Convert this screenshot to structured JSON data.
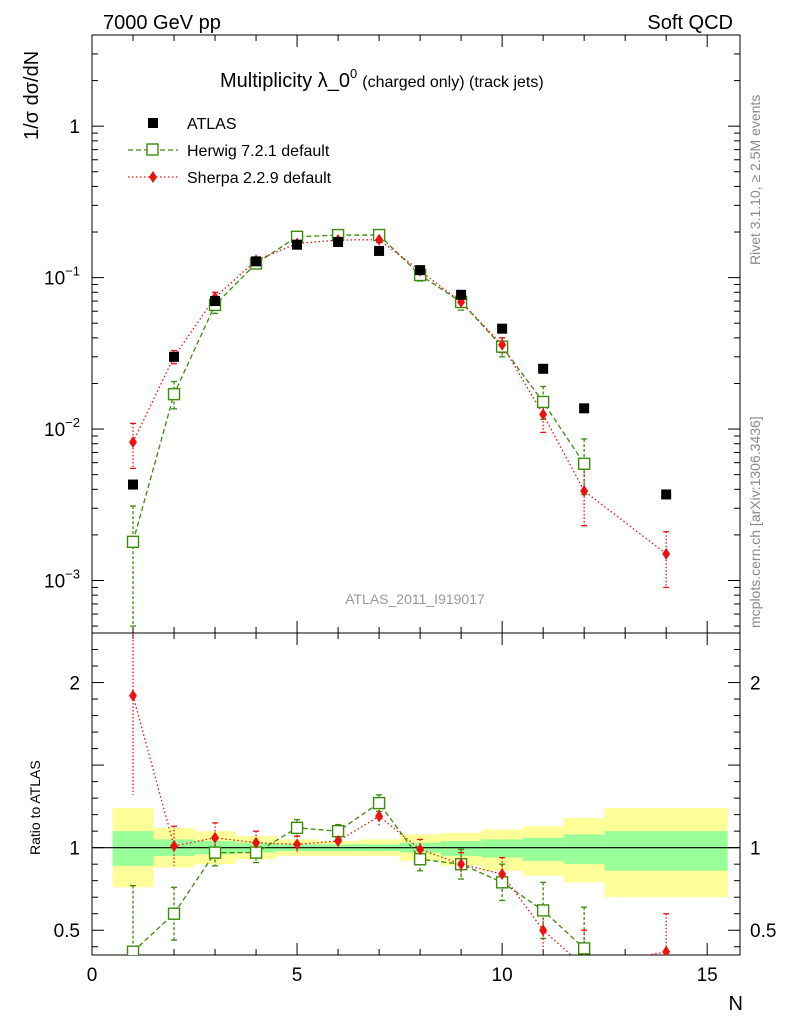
{
  "header": {
    "left": "7000 GeV pp",
    "right": "Soft QCD"
  },
  "side_text": {
    "rivet": "Rivet 3.1.10, ≥ 2.5M events",
    "mcplots": "mcplots.cern.ch [arXiv:1306.3436]"
  },
  "chart_data": {
    "type": "scatter",
    "title": "Multiplicity λ_0^0 (charged only) (track jets)",
    "title_main": "Multiplicity λ_0",
    "title_sup": "0",
    "title_rest": "(charged only) (track jets)",
    "analysis_label": "ATLAS_2011_I919017",
    "xlabel": "N",
    "ylabel": "1/σ dσ/dN",
    "ratio_ylabel": "Ratio to ATLAS",
    "xlim": [
      0,
      15.8
    ],
    "ylim": [
      0.00045,
      4
    ],
    "yscale": "log",
    "ratio_ylim": [
      0.35,
      2.3
    ],
    "x_ticks": [
      0,
      5,
      10,
      15
    ],
    "y_ticks": [
      {
        "value": 0.001,
        "base": "10",
        "exp": "−3"
      },
      {
        "value": 0.01,
        "base": "10",
        "exp": "−2"
      },
      {
        "value": 0.1,
        "base": "10",
        "exp": "−1"
      },
      {
        "value": 1,
        "base": "1",
        "exp": ""
      }
    ],
    "ratio_ticks": [
      {
        "value": 0.5,
        "label": "0.5"
      },
      {
        "value": 1,
        "label": "1"
      },
      {
        "value": 2,
        "label": "2"
      }
    ],
    "legend": [
      "ATLAS",
      "Herwig 7.2.1 default",
      "Sherpa 2.2.9 default"
    ],
    "colors": {
      "atlas": "#000000",
      "herwig": "#3a8c0a",
      "sherpa": "#ee1111",
      "band_yellow": "#ffff99",
      "band_green": "#99ff99"
    },
    "series": [
      {
        "name": "ATLAS",
        "x": [
          1,
          2,
          3,
          4,
          5,
          6,
          7,
          8,
          9,
          10,
          11,
          12,
          14
        ],
        "y": [
          0.0043,
          0.03,
          0.07,
          0.128,
          0.165,
          0.172,
          0.15,
          0.112,
          0.077,
          0.046,
          0.025,
          0.0137,
          0.0037
        ]
      },
      {
        "name": "Herwig 7.2.1 default",
        "x": [
          1,
          2,
          3,
          4,
          5,
          6,
          7,
          8,
          9,
          10,
          11,
          12
        ],
        "y": [
          0.0018,
          0.017,
          0.066,
          0.124,
          0.186,
          0.191,
          0.191,
          0.104,
          0.069,
          0.035,
          0.0151,
          0.0059
        ],
        "err_lo": [
          0.0013,
          0.0034,
          0.008,
          0.008,
          0.008,
          0.007,
          0.008,
          0.009,
          0.008,
          0.005,
          0.0035,
          0.0022
        ],
        "err_hi": [
          0.0013,
          0.0036,
          0.008,
          0.008,
          0.008,
          0.007,
          0.008,
          0.009,
          0.008,
          0.005,
          0.004,
          0.0027
        ],
        "ratio": [
          0.37,
          0.6,
          0.97,
          0.97,
          1.12,
          1.1,
          1.27,
          0.93,
          0.9,
          0.79,
          0.62,
          0.39
        ],
        "ratio_err": [
          0.4,
          0.16,
          0.08,
          0.06,
          0.05,
          0.04,
          0.05,
          0.07,
          0.09,
          0.11,
          0.17,
          0.25
        ]
      },
      {
        "name": "Sherpa 2.2.9 default",
        "x": [
          1,
          2,
          3,
          4,
          5,
          6,
          7,
          8,
          9,
          10,
          11,
          12,
          14
        ],
        "y": [
          0.0082,
          0.03,
          0.074,
          0.13,
          0.168,
          0.177,
          0.178,
          0.111,
          0.069,
          0.036,
          0.0125,
          0.0039,
          0.0015
        ],
        "err_lo": [
          0.0027,
          0.003,
          0.006,
          0.006,
          0.006,
          0.006,
          0.007,
          0.006,
          0.005,
          0.004,
          0.003,
          0.0016,
          0.0006
        ],
        "err_hi": [
          0.0027,
          0.003,
          0.006,
          0.006,
          0.006,
          0.006,
          0.007,
          0.006,
          0.005,
          0.004,
          0.003,
          0.0016,
          0.0006
        ],
        "ratio": [
          1.92,
          1.01,
          1.06,
          1.03,
          1.02,
          1.04,
          1.19,
          0.99,
          0.9,
          0.84,
          0.5,
          0.28,
          0.37
        ],
        "ratio_err": [
          0.6,
          0.12,
          0.09,
          0.07,
          0.05,
          0.04,
          0.06,
          0.06,
          0.07,
          0.1,
          0.14,
          0.22,
          0.23
        ]
      }
    ],
    "uncertainty_bands": {
      "bins": [
        [
          0.5,
          1.5
        ],
        [
          1.5,
          2.5
        ],
        [
          2.5,
          3.5
        ],
        [
          3.5,
          4.5
        ],
        [
          4.5,
          5.5
        ],
        [
          5.5,
          6.5
        ],
        [
          6.5,
          7.5
        ],
        [
          7.5,
          8.5
        ],
        [
          8.5,
          9.5
        ],
        [
          9.5,
          10.5
        ],
        [
          10.5,
          11.5
        ],
        [
          11.5,
          12.5
        ],
        [
          12.5,
          15.5
        ]
      ],
      "yellow": [
        [
          0.76,
          1.24
        ],
        [
          0.88,
          1.12
        ],
        [
          0.9,
          1.1
        ],
        [
          0.93,
          1.07
        ],
        [
          0.95,
          1.05
        ],
        [
          0.95,
          1.04
        ],
        [
          0.95,
          1.05
        ],
        [
          0.92,
          1.08
        ],
        [
          0.89,
          1.09
        ],
        [
          0.86,
          1.11
        ],
        [
          0.83,
          1.13
        ],
        [
          0.79,
          1.18
        ],
        [
          0.7,
          1.24
        ]
      ],
      "green": [
        [
          0.89,
          1.1
        ],
        [
          0.95,
          1.05
        ],
        [
          0.96,
          1.04
        ],
        [
          0.97,
          1.03
        ],
        [
          0.98,
          1.02
        ],
        [
          0.98,
          1.02
        ],
        [
          0.98,
          1.02
        ],
        [
          0.97,
          1.03
        ],
        [
          0.95,
          1.04
        ],
        [
          0.94,
          1.05
        ],
        [
          0.92,
          1.06
        ],
        [
          0.9,
          1.08
        ],
        [
          0.86,
          1.1
        ]
      ]
    }
  }
}
